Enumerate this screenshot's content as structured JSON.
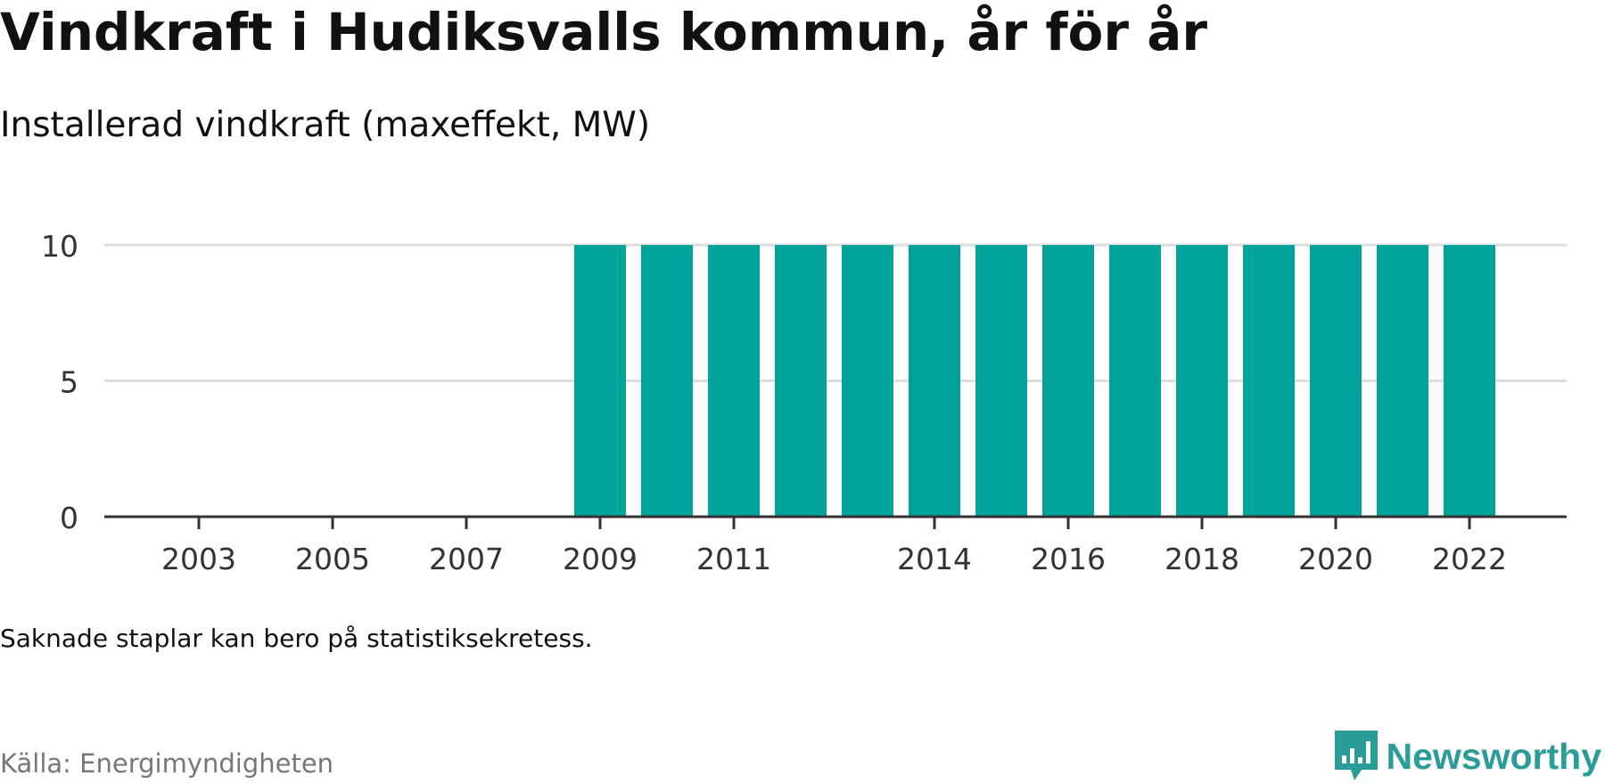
{
  "header": {
    "title": "Vindkraft i Hudiksvalls kommun, år för år",
    "subtitle": "Installerad vindkraft (maxeffekt, MW)"
  },
  "footer": {
    "note": "Saknade staplar kan bero på statistiksekretess.",
    "source": "Källa: Energimyndigheten",
    "brand": "Newsworthy",
    "brand_icon": "newsworthy-logo-icon"
  },
  "colors": {
    "bar": "#00a39a",
    "grid": "#dddddd",
    "axis": "#333333",
    "brand": "#2a9d99"
  },
  "chart_data": {
    "type": "bar",
    "title": "Vindkraft i Hudiksvalls kommun, år för år",
    "subtitle": "Installerad vindkraft (maxeffekt, MW)",
    "xlabel": "",
    "ylabel": "",
    "categories": [
      "2002",
      "2003",
      "2004",
      "2005",
      "2006",
      "2007",
      "2008",
      "2009",
      "2010",
      "2011",
      "2012",
      "2013",
      "2014",
      "2015",
      "2016",
      "2017",
      "2018",
      "2019",
      "2020",
      "2021",
      "2022"
    ],
    "values": [
      null,
      null,
      null,
      null,
      null,
      null,
      null,
      10,
      10,
      10,
      10,
      10,
      10,
      10,
      10,
      10,
      10,
      10,
      10,
      10,
      10
    ],
    "x_tick_labels": [
      "2003",
      "2005",
      "2007",
      "2009",
      "2011",
      "2014",
      "2016",
      "2018",
      "2020",
      "2022"
    ],
    "y_ticks": [
      0,
      5,
      10
    ],
    "ylim": [
      0,
      10
    ],
    "grid": true,
    "legend": false
  }
}
